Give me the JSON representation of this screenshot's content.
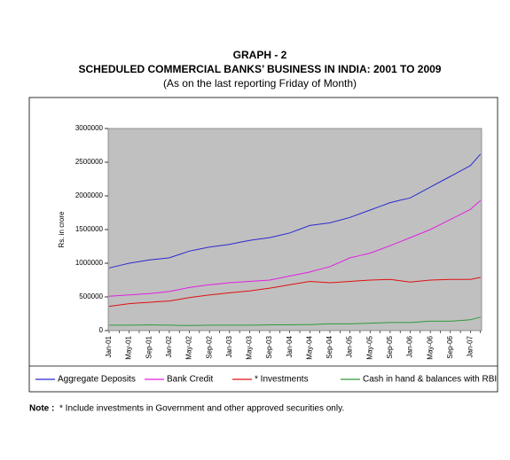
{
  "chart_data": {
    "type": "line",
    "title": "GRAPH - 2",
    "subtitle": "SCHEDULED COMMERCIAL BANKS’ BUSINESS IN INDIA: 2001 TO 2009",
    "subtitle2": "(As on the last reporting Friday of Month)",
    "y_label": "Rs. in crore",
    "note_label": "Note :",
    "note": "* Include investments in Government and other approved securities only.",
    "categories": [
      "Jan-01",
      null,
      "May-01",
      null,
      "Sep-01",
      null,
      "Jan-02",
      null,
      "May-02",
      null,
      "Sep-02",
      null,
      "Jan-03",
      null,
      "May-03",
      null,
      "Sep-03",
      null,
      "Jan-04",
      null,
      "May-04",
      null,
      "Sep-04",
      null,
      "Jan-05",
      null,
      "May-05",
      null,
      "Sep-05",
      null,
      "Jan-06",
      null,
      "May-06",
      null,
      "Sep-06",
      null,
      "Jan-07",
      null
    ],
    "series": [
      {
        "name": "Aggregate Deposits",
        "color": "#2b2bd0",
        "values": [
          930000,
          965000,
          1000000,
          1025000,
          1050000,
          1065000,
          1080000,
          1130000,
          1180000,
          1210000,
          1240000,
          1260000,
          1280000,
          1310000,
          1340000,
          1360000,
          1380000,
          1415000,
          1450000,
          1505000,
          1560000,
          1580000,
          1600000,
          1640000,
          1680000,
          1735000,
          1790000,
          1845000,
          1900000,
          1935000,
          1970000,
          2050000,
          2130000,
          2210000,
          2290000,
          2370000,
          2450000,
          2620000
        ]
      },
      {
        "name": "Bank Credit",
        "color": "#e020e0",
        "values": [
          510000,
          520000,
          530000,
          540000,
          550000,
          565000,
          580000,
          610000,
          640000,
          660000,
          680000,
          695000,
          710000,
          720000,
          730000,
          740000,
          750000,
          780000,
          810000,
          840000,
          870000,
          910000,
          950000,
          1015000,
          1080000,
          1115000,
          1150000,
          1205000,
          1260000,
          1320000,
          1380000,
          1440000,
          1500000,
          1575000,
          1650000,
          1725000,
          1800000,
          1930000
        ]
      },
      {
        "name": "* Investments",
        "color": "#e01010",
        "values": [
          360000,
          380000,
          400000,
          410000,
          420000,
          430000,
          440000,
          465000,
          490000,
          510000,
          530000,
          545000,
          560000,
          575000,
          590000,
          610000,
          630000,
          655000,
          680000,
          705000,
          730000,
          720000,
          710000,
          720000,
          730000,
          740000,
          750000,
          755000,
          760000,
          740000,
          720000,
          735000,
          750000,
          755000,
          760000,
          760000,
          760000,
          790000
        ]
      },
      {
        "name": "Cash in hand & balances with RBI",
        "color": "#2e9a3a",
        "values": [
          80000,
          80000,
          80000,
          82000,
          85000,
          82000,
          80000,
          78000,
          75000,
          78000,
          80000,
          80000,
          80000,
          80000,
          80000,
          82000,
          85000,
          85000,
          85000,
          88000,
          90000,
          95000,
          100000,
          100000,
          100000,
          105000,
          110000,
          115000,
          120000,
          120000,
          120000,
          130000,
          140000,
          140000,
          140000,
          150000,
          160000,
          200000
        ]
      }
    ],
    "ylim": [
      0,
      3000000
    ],
    "yticks": [
      0,
      500000,
      1000000,
      1500000,
      2000000,
      2500000,
      3000000
    ],
    "plot_background": "#c0c0c0"
  }
}
